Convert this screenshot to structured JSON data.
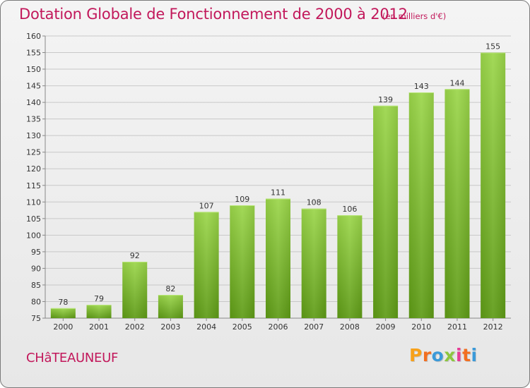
{
  "header": {
    "title": "Dotation Globale de Fonctionnement de 2000 à 2012",
    "unit_note": "(en milliers d'€)"
  },
  "footer": {
    "commune": "CHâTEAUNEUF",
    "logo_text": "Proxiti",
    "logo_colors": [
      "#f7a11a",
      "#f26f21",
      "#3b9ad9",
      "#8cc63f",
      "#e63d95",
      "#f26f21",
      "#3b9ad9"
    ]
  },
  "chart_data": {
    "type": "bar",
    "categories": [
      "2000",
      "2001",
      "2002",
      "2003",
      "2004",
      "2005",
      "2006",
      "2007",
      "2008",
      "2009",
      "2010",
      "2011",
      "2012"
    ],
    "values": [
      78,
      79,
      92,
      82,
      107,
      109,
      111,
      108,
      106,
      139,
      143,
      144,
      155
    ],
    "ylim": [
      75,
      160
    ],
    "yticks": [
      75,
      80,
      85,
      90,
      95,
      100,
      105,
      110,
      115,
      120,
      125,
      130,
      135,
      140,
      145,
      150,
      155,
      160
    ],
    "grid": true,
    "bar_color_top": "#9bd64a",
    "bar_color_bottom": "#5e9b16"
  }
}
